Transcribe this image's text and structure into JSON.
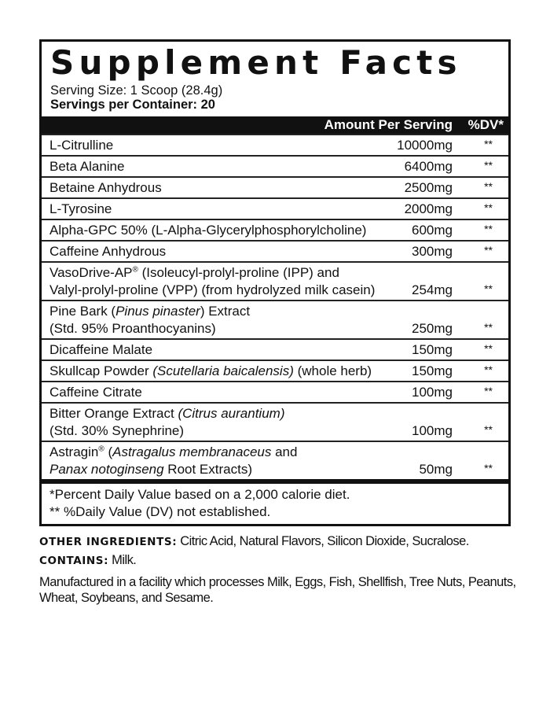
{
  "title": "Supplement Facts",
  "serving_size": "Serving Size: 1 Scoop  (28.4g)",
  "servings_per_container": "Servings per Container: 20",
  "header": {
    "amount": "Amount Per Serving",
    "dv": "%DV*"
  },
  "rows": [
    {
      "name": [
        {
          "t": "L-Citrulline"
        }
      ],
      "amount": "10000mg",
      "dv": "**"
    },
    {
      "name": [
        {
          "t": "Beta Alanine"
        }
      ],
      "amount": "6400mg",
      "dv": "**"
    },
    {
      "name": [
        {
          "t": "Betaine Anhydrous"
        }
      ],
      "amount": "2500mg",
      "dv": "**"
    },
    {
      "name": [
        {
          "t": "L-Tyrosine"
        }
      ],
      "amount": "2000mg",
      "dv": "**"
    },
    {
      "name": [
        {
          "t": "Alpha-GPC 50% (L-Alpha-Glycerylphosphorylcholine)"
        }
      ],
      "amount": "600mg",
      "dv": "**"
    },
    {
      "name": [
        {
          "t": "Caffeine Anhydrous"
        }
      ],
      "amount": "300mg",
      "dv": "**"
    },
    {
      "name": [
        {
          "t": "VasoDrive-AP"
        },
        {
          "t": "®",
          "sup": true
        },
        {
          "t": " (Isoleucyl-prolyl-proline (IPP) and"
        },
        {
          "br": true
        },
        {
          "t": "Valyl-prolyl-proline (VPP) (from hydrolyzed milk casein)"
        }
      ],
      "amount": "254mg",
      "dv": "**"
    },
    {
      "name": [
        {
          "t": "Pine Bark ("
        },
        {
          "t": "Pinus pinaster",
          "i": true
        },
        {
          "t": ") Extract"
        },
        {
          "br": true
        },
        {
          "t": "(Std. 95% Proanthocyanins)"
        }
      ],
      "amount": "250mg",
      "dv": "**"
    },
    {
      "name": [
        {
          "t": "Dicaffeine Malate"
        }
      ],
      "amount": "150mg",
      "dv": "**"
    },
    {
      "name": [
        {
          "t": "Skullcap Powder "
        },
        {
          "t": "(Scutellaria baicalensis)",
          "i": true
        },
        {
          "t": " (whole herb)"
        }
      ],
      "amount": "150mg",
      "dv": "**"
    },
    {
      "name": [
        {
          "t": "Caffeine Citrate"
        }
      ],
      "amount": "100mg",
      "dv": "**"
    },
    {
      "name": [
        {
          "t": "Bitter Orange Extract "
        },
        {
          "t": "(Citrus aurantium)",
          "i": true
        },
        {
          "br": true
        },
        {
          "t": "(Std. 30% Synephrine)"
        }
      ],
      "amount": "100mg",
      "dv": "**"
    },
    {
      "name": [
        {
          "t": "Astragin"
        },
        {
          "t": "®",
          "sup": true
        },
        {
          "t": " ("
        },
        {
          "t": "Astragalus membranaceus",
          "i": true
        },
        {
          "t": " and"
        },
        {
          "br": true
        },
        {
          "t": "Panax notoginseng",
          "i": true
        },
        {
          "t": " Root Extracts)"
        }
      ],
      "amount": "50mg",
      "dv": "**"
    }
  ],
  "footnotes": [
    "*Percent Daily Value based on a 2,000 calorie diet.",
    "** %Daily Value (DV) not established."
  ],
  "other_ingredients": {
    "label": "OTHER INGREDIENTS:",
    "text": " Citric Acid, Natural Flavors, Silicon Dioxide, Sucralose."
  },
  "contains": {
    "label": "CONTAINS:",
    "text": " Milk."
  },
  "facility": "Manufactured in a facility which processes Milk, Eggs, Fish, Shellfish, Tree Nuts, Peanuts, Wheat, Soybeans, and Sesame."
}
